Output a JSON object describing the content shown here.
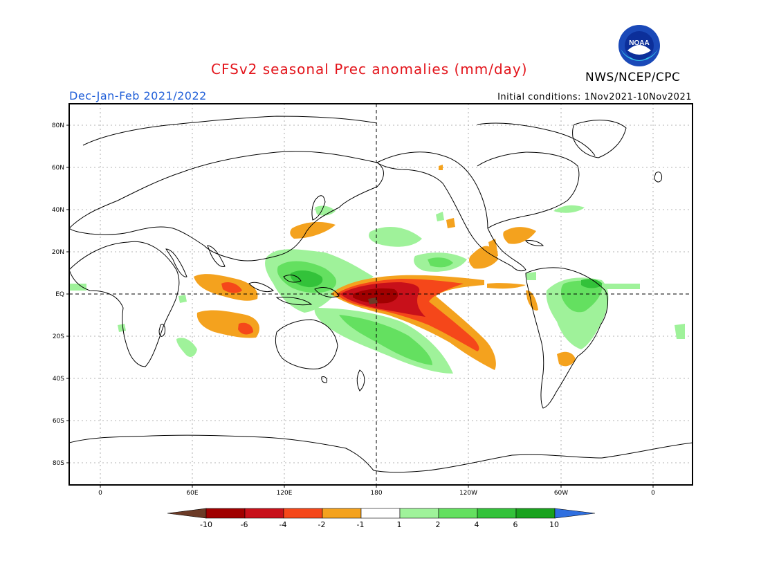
{
  "header": {
    "title": "CFSv2 seasonal Prec anomalies (mm/day)",
    "season": "Dec-Jan-Feb 2021/2022",
    "initial_conditions": "Initial conditions: 1Nov2021-10Nov2021",
    "agency": "NWS/NCEP/CPC",
    "logo_text": "NOAA"
  },
  "map": {
    "lat_labels": [
      "80N",
      "60N",
      "40N",
      "20N",
      "EQ",
      "20S",
      "40S",
      "60S",
      "80S"
    ],
    "lon_labels": [
      "0",
      "60E",
      "120E",
      "180",
      "120W",
      "60W",
      "0"
    ]
  },
  "colorbar": {
    "colors": [
      "#6b3a26",
      "#a00000",
      "#c8101a",
      "#f5471a",
      "#f4a21e",
      "#ffffff",
      "#9ff29a",
      "#64e060",
      "#33c23a",
      "#19a21e",
      "#2f6fe0"
    ],
    "labels": [
      "-10",
      "-6",
      "-4",
      "-2",
      "-1",
      "1",
      "2",
      "4",
      "6",
      "10"
    ]
  }
}
